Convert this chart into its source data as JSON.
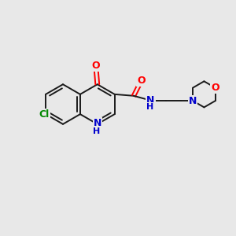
{
  "bg_color": "#e8e8e8",
  "bond_color": "#1a1a1a",
  "atom_colors": {
    "O": "#ff0000",
    "N": "#0000cc",
    "Cl": "#008800",
    "C": "#1a1a1a"
  },
  "figsize": [
    3.0,
    3.0
  ],
  "dpi": 100
}
